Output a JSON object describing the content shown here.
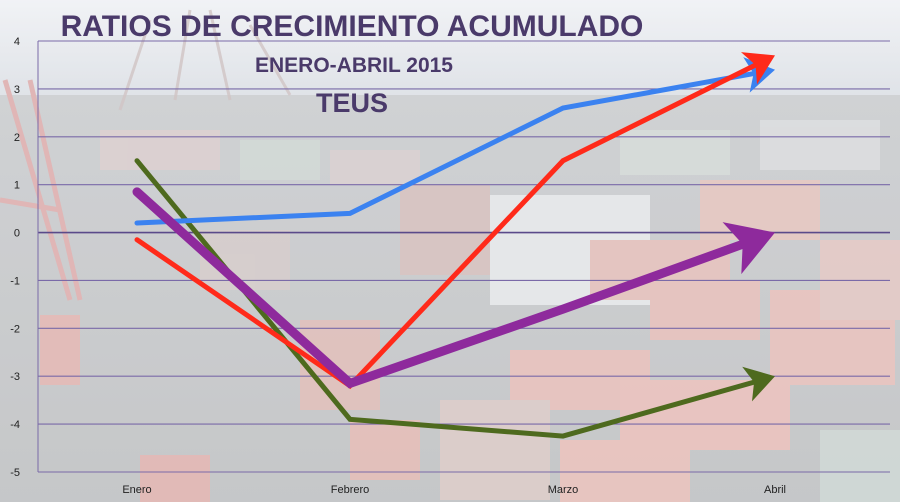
{
  "chart_data": {
    "type": "line",
    "title": "RATIOS DE CRECIMIENTO ACUMULADO",
    "subtitle": "ENERO-ABRIL 2015",
    "subtitle2": "TEUS",
    "categories": [
      "Enero",
      "Febrero",
      "Marzo",
      "Abril"
    ],
    "yticks": [
      "4",
      "3",
      "2",
      "1",
      "0",
      "-1",
      "-2",
      "-3",
      "-4",
      "-5"
    ],
    "ylim": [
      -5,
      4
    ],
    "grid": true,
    "series": [
      {
        "color": "#3b82f0",
        "values": [
          0.2,
          0.4,
          2.6,
          3.4
        ]
      },
      {
        "color": "#ff2a1a",
        "values": [
          -0.15,
          -3.2,
          1.5,
          3.7
        ]
      },
      {
        "color": "#8e2a9c",
        "values": [
          0.85,
          -3.15,
          -1.6,
          0.0
        ]
      },
      {
        "color": "#4e6a1e",
        "values": [
          1.5,
          -3.9,
          -4.25,
          -3.0
        ]
      }
    ]
  }
}
